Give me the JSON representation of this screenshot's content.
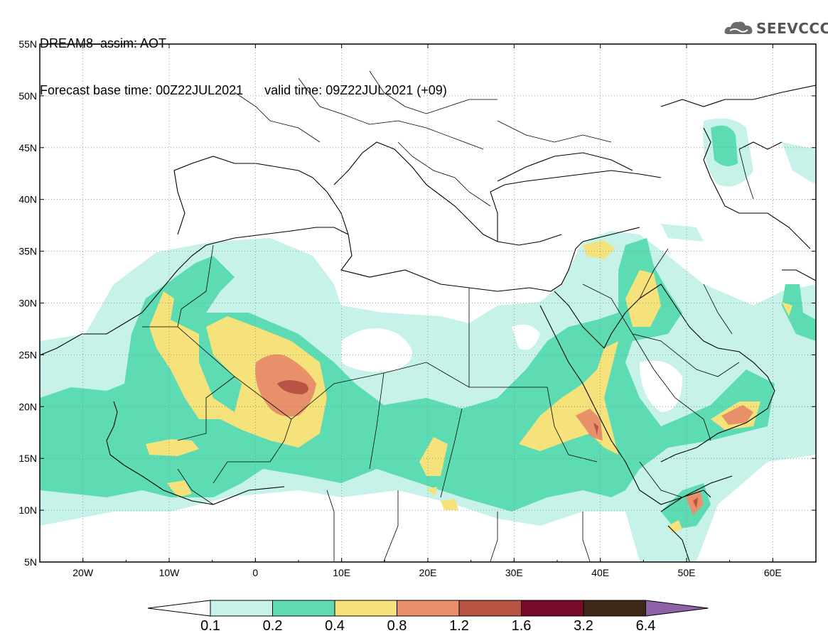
{
  "title": {
    "line1": "DREAM8–assim: AOT",
    "base_time": "Forecast base time: 00Z22JUL2021",
    "valid_time": "valid time: 09Z22JUL2021 (+09)"
  },
  "logo": {
    "text": "SEEVCCC",
    "icon": "cloud-logo-icon"
  },
  "map": {
    "lat_labels": [
      "55N",
      "50N",
      "45N",
      "40N",
      "35N",
      "30N",
      "25N",
      "20N",
      "15N",
      "10N",
      "5N"
    ],
    "lon_labels": [
      "20W",
      "10W",
      "0",
      "10E",
      "20E",
      "30E",
      "40E",
      "50E",
      "60E"
    ],
    "lat_range": [
      5,
      55
    ],
    "lon_range": [
      -25,
      65
    ]
  },
  "colorbar": {
    "labels": [
      "0.1",
      "0.2",
      "0.4",
      "0.8",
      "1.2",
      "1.6",
      "3.2",
      "6.4"
    ],
    "colors": [
      "#ffffff",
      "#c6f2ea",
      "#5ddcb4",
      "#f5e27a",
      "#e8906a",
      "#b95444",
      "#7a0a2a",
      "#3d2716",
      "#8e62a8"
    ]
  },
  "palette": {
    "c1": "#c6f2ea",
    "c2": "#5ddcb4",
    "c3": "#f5e27a",
    "c4": "#e8906a",
    "c5": "#b95444",
    "c6": "#7a0a2a"
  }
}
